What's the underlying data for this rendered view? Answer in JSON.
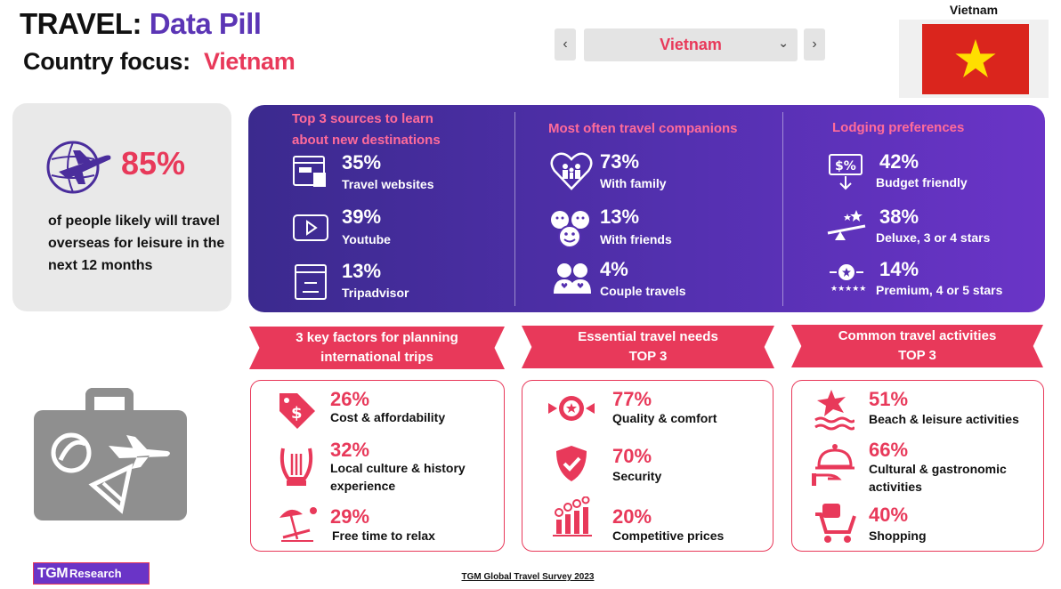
{
  "header": {
    "title_prefix": "TRAVEL:",
    "title_accent": "Data Pill",
    "subtitle_prefix": "Country focus:",
    "subtitle_country": "Vietnam"
  },
  "selector": {
    "selected": "Vietnam",
    "prev_icon": "chevron-left-icon",
    "next_icon": "chevron-right-icon"
  },
  "flag": {
    "label": "Vietnam",
    "red": "#da251d",
    "star": "#ffde00"
  },
  "stat": {
    "percent": "85%",
    "text": "of people likely will travel overseas for leisure in the next 12 months"
  },
  "panel": {
    "sources": {
      "title_1": "Top 3 sources to learn",
      "title_2": "about new destinations",
      "items": [
        {
          "pct": "35%",
          "label": "Travel websites"
        },
        {
          "pct": "39%",
          "label": "Youtube"
        },
        {
          "pct": "13%",
          "label": "Tripadvisor"
        }
      ]
    },
    "companions": {
      "title": "Most often travel companions",
      "items": [
        {
          "pct": "73%",
          "label": "With family"
        },
        {
          "pct": "13%",
          "label": "With friends"
        },
        {
          "pct": "4%",
          "label": "Couple travels"
        }
      ]
    },
    "lodging": {
      "title": "Lodging preferences",
      "items": [
        {
          "pct": "42%",
          "label": "Budget friendly"
        },
        {
          "pct": "38%",
          "label": "Deluxe, 3 or 4 stars"
        },
        {
          "pct": "14%",
          "label": "Premium, 4 or 5 stars"
        }
      ]
    }
  },
  "factors": {
    "title_1": "3 key factors for planning",
    "title_2": "international trips",
    "items": [
      {
        "pct": "26%",
        "label_1": "Cost & affordability",
        "label_2": ""
      },
      {
        "pct": "32%",
        "label_1": "Local culture & history",
        "label_2": "experience"
      },
      {
        "pct": "29%",
        "label_1": "Free time to relax",
        "label_2": ""
      }
    ]
  },
  "needs": {
    "title_1": "Essential travel needs",
    "title_2": "TOP 3",
    "items": [
      {
        "pct": "77%",
        "label": "Quality & comfort"
      },
      {
        "pct": "70%",
        "label": "Security"
      },
      {
        "pct": "20%",
        "label": "Competitive prices"
      }
    ]
  },
  "activities": {
    "title_1": "Common travel activities",
    "title_2": "TOP 3",
    "items": [
      {
        "pct": "51%",
        "label_1": "Beach & leisure activities",
        "label_2": ""
      },
      {
        "pct": "66%",
        "label_1": "Cultural & gastronomic",
        "label_2": "activities"
      },
      {
        "pct": "40%",
        "label_1": "Shopping",
        "label_2": ""
      }
    ]
  },
  "footer": {
    "logo_main": "TGM",
    "logo_sub": "Research",
    "source": "TGM Global Travel Survey 2023"
  },
  "colors": {
    "purple": "#5b35b5",
    "pink": "#e8395a",
    "grey": "#8f8f8f"
  }
}
